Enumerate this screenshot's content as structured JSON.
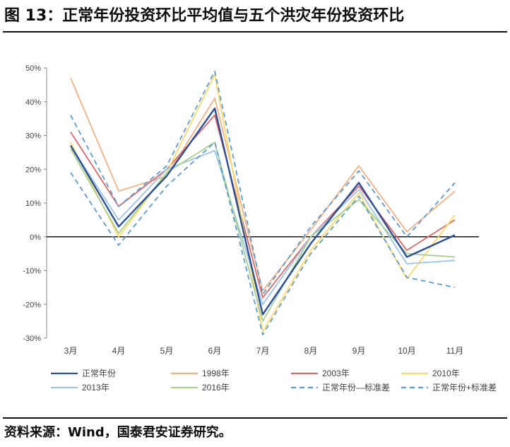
{
  "figure": {
    "title": "图 13：正常年份投资环比平均值与五个洪灾年份投资环比",
    "source": "资料来源：Wind，国泰君安证券研究。"
  },
  "chart_data": {
    "type": "line",
    "categories": [
      "3月",
      "4月",
      "5月",
      "6月",
      "7月",
      "8月",
      "9月",
      "10月",
      "11月"
    ],
    "ylim": [
      -30,
      50
    ],
    "yticks": [
      "-30%",
      "-20%",
      "-10%",
      "0%",
      "10%",
      "20%",
      "30%",
      "40%",
      "50%"
    ],
    "legend_position": "bottom",
    "series": [
      {
        "name": "正常年份",
        "color": "#2a4f9a",
        "dash": "solid",
        "width": 2.4,
        "values": [
          27,
          3,
          18,
          38,
          -23,
          -2,
          16,
          -6,
          0.5
        ]
      },
      {
        "name": "1998年",
        "color": "#f4b183",
        "dash": "solid",
        "width": 1.8,
        "values": [
          47,
          13.5,
          18,
          41,
          -16,
          2,
          21,
          1.5,
          13.5
        ]
      },
      {
        "name": "2003年",
        "color": "#e06666",
        "dash": "solid",
        "width": 1.8,
        "values": [
          31,
          9,
          20,
          36,
          -18,
          0,
          15,
          -4,
          5
        ]
      },
      {
        "name": "2010年",
        "color": "#ffd966",
        "dash": "solid",
        "width": 1.8,
        "values": [
          28,
          0,
          19,
          48,
          -28,
          -4,
          13,
          -12.5,
          6.5
        ]
      },
      {
        "name": "2013年",
        "color": "#9dc3e6",
        "dash": "solid",
        "width": 1.8,
        "values": [
          27,
          5,
          20,
          25.5,
          -20,
          0,
          14,
          -8,
          -7
        ]
      },
      {
        "name": "2016年",
        "color": "#a9d18e",
        "dash": "solid",
        "width": 1.8,
        "values": [
          26,
          1,
          19,
          28,
          -25,
          0,
          11,
          -5,
          -6
        ]
      },
      {
        "name": "正常年份—标准差",
        "color": "#5b9bd5",
        "dash": "dashed",
        "width": 1.8,
        "values": [
          19,
          -2.5,
          15,
          28,
          -29,
          -5,
          12,
          -12,
          -15
        ]
      },
      {
        "name": "正常年份+标准差",
        "color": "#5b9bd5",
        "dash": "dashed",
        "width": 1.8,
        "values": [
          36,
          9,
          21,
          49,
          -17,
          3,
          19.5,
          0,
          16
        ]
      }
    ]
  }
}
